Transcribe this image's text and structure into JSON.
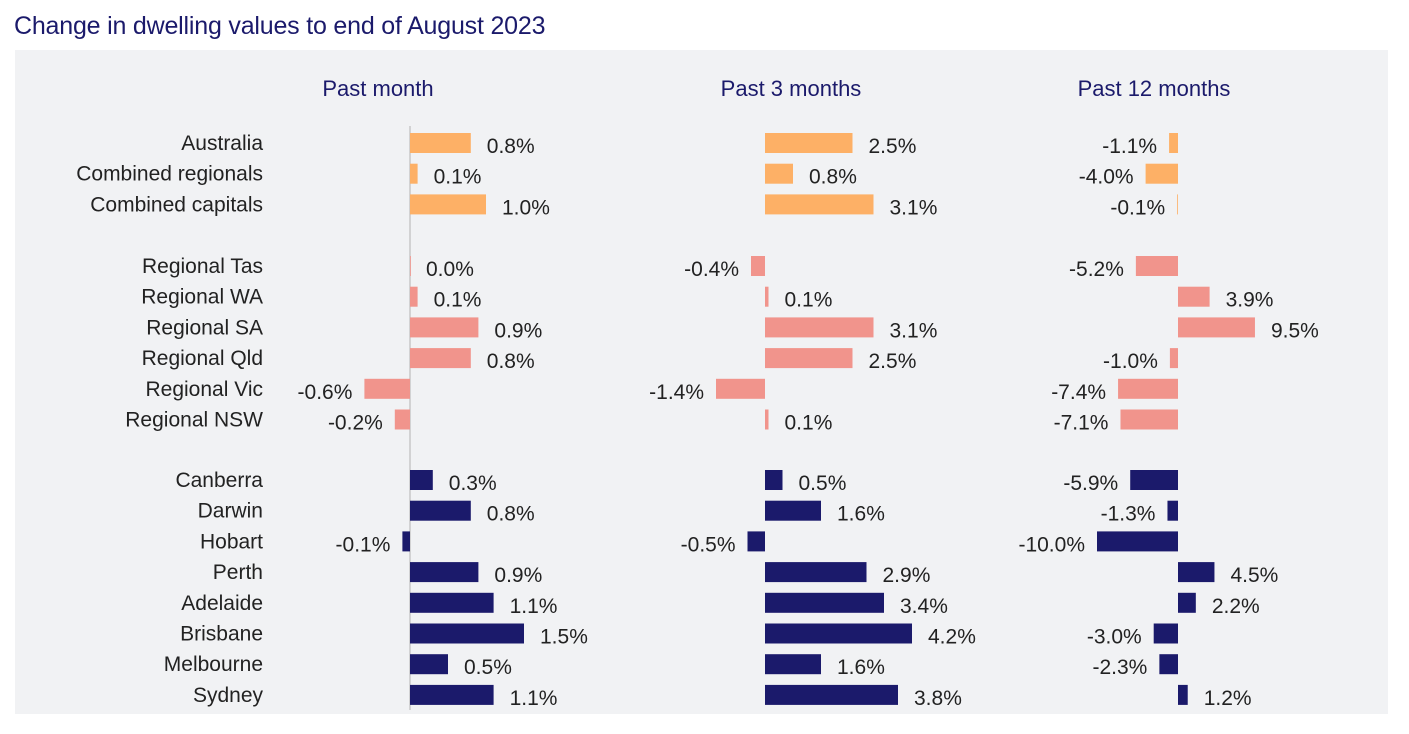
{
  "title": "Change in dwelling values to end of August 2023",
  "chart_data": {
    "type": "bar",
    "orientation": "horizontal",
    "title": "Change in dwelling values to end of August 2023",
    "panels": [
      "Past month",
      "Past 3 months",
      "Past 12 months"
    ],
    "groups": [
      {
        "color": "#fdb066",
        "items": [
          {
            "label": "Australia",
            "values": [
              0.8,
              2.5,
              -1.1
            ],
            "labels": [
              "0.8%",
              "2.5%",
              "-1.1%"
            ]
          },
          {
            "label": "Combined regionals",
            "values": [
              0.1,
              0.8,
              -4.0
            ],
            "labels": [
              "0.1%",
              "0.8%",
              "-4.0%"
            ]
          },
          {
            "label": "Combined capitals",
            "values": [
              1.0,
              3.1,
              -0.1
            ],
            "labels": [
              "1.0%",
              "3.1%",
              "-0.1%"
            ]
          }
        ]
      },
      {
        "color": "#f1948c",
        "items": [
          {
            "label": "Regional Tas",
            "values": [
              0.0,
              -0.4,
              -5.2
            ],
            "labels": [
              "0.0%",
              "-0.4%",
              "-5.2%"
            ]
          },
          {
            "label": "Regional WA",
            "values": [
              0.1,
              0.1,
              3.9
            ],
            "labels": [
              "0.1%",
              "0.1%",
              "3.9%"
            ]
          },
          {
            "label": "Regional SA",
            "values": [
              0.9,
              3.1,
              9.5
            ],
            "labels": [
              "0.9%",
              "3.1%",
              "9.5%"
            ]
          },
          {
            "label": "Regional Qld",
            "values": [
              0.8,
              2.5,
              -1.0
            ],
            "labels": [
              "0.8%",
              "2.5%",
              "-1.0%"
            ]
          },
          {
            "label": "Regional Vic",
            "values": [
              -0.6,
              -1.4,
              -7.4
            ],
            "labels": [
              "-0.6%",
              "-1.4%",
              "-7.4%"
            ]
          },
          {
            "label": "Regional NSW",
            "values": [
              -0.2,
              0.1,
              -7.1
            ],
            "labels": [
              "-0.2%",
              "0.1%",
              "-7.1%"
            ]
          }
        ]
      },
      {
        "color": "#1b1a6b",
        "items": [
          {
            "label": "Canberra",
            "values": [
              0.3,
              0.5,
              -5.9
            ],
            "labels": [
              "0.3%",
              "0.5%",
              "-5.9%"
            ]
          },
          {
            "label": "Darwin",
            "values": [
              0.8,
              1.6,
              -1.3
            ],
            "labels": [
              "0.8%",
              "1.6%",
              "-1.3%"
            ]
          },
          {
            "label": "Hobart",
            "values": [
              -0.1,
              -0.5,
              -10.0
            ],
            "labels": [
              "-0.1%",
              "-0.5%",
              "-10.0%"
            ]
          },
          {
            "label": "Perth",
            "values": [
              0.9,
              2.9,
              4.5
            ],
            "labels": [
              "0.9%",
              "2.9%",
              "4.5%"
            ]
          },
          {
            "label": "Adelaide",
            "values": [
              1.1,
              3.4,
              2.2
            ],
            "labels": [
              "1.1%",
              "3.4%",
              "2.2%"
            ]
          },
          {
            "label": "Brisbane",
            "values": [
              1.5,
              4.2,
              -3.0
            ],
            "labels": [
              "1.5%",
              "4.2%",
              "-3.0%"
            ]
          },
          {
            "label": "Melbourne",
            "values": [
              0.5,
              1.6,
              -2.3
            ],
            "labels": [
              "0.5%",
              "1.6%",
              "-2.3%"
            ]
          },
          {
            "label": "Sydney",
            "values": [
              1.1,
              3.8,
              1.2
            ],
            "labels": [
              "1.1%",
              "3.8%",
              "1.2%"
            ]
          }
        ]
      }
    ],
    "colors": {
      "title": "#1b1a6b",
      "panel_background": "#f1f2f4",
      "axis_line": "#c8c8c8",
      "text": "#222222"
    }
  }
}
